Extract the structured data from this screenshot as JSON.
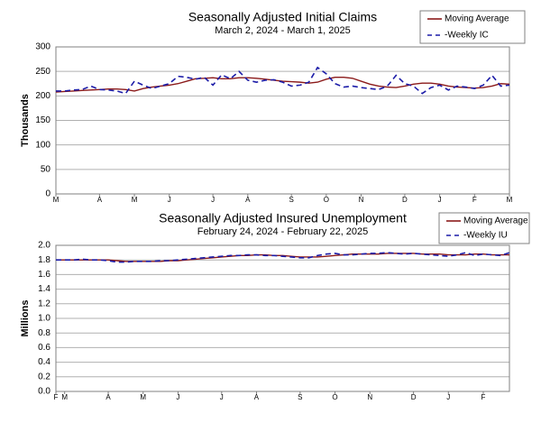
{
  "chart_data": [
    {
      "type": "line",
      "title": "Seasonally Adjusted Initial Claims",
      "subtitle": "March 2, 2024 - March 1, 2025",
      "ylabel": "Thousands",
      "categories": [
        "M",
        null,
        null,
        null,
        null,
        "A",
        null,
        null,
        null,
        "M",
        null,
        null,
        null,
        "J",
        null,
        null,
        null,
        null,
        "J",
        null,
        null,
        null,
        "A",
        null,
        null,
        null,
        null,
        "S",
        null,
        null,
        null,
        "O",
        null,
        null,
        null,
        "N",
        null,
        null,
        null,
        null,
        "D",
        null,
        null,
        null,
        "J",
        null,
        null,
        null,
        "F",
        null,
        null,
        null,
        "M"
      ],
      "series": [
        {
          "name": "Moving Average",
          "color": "#8b1a1a",
          "dashed": false,
          "values": [
            208,
            209,
            210,
            211,
            212,
            213,
            214,
            214,
            213,
            210,
            215,
            218,
            220,
            222,
            225,
            230,
            235,
            236,
            237,
            235,
            235,
            237,
            237,
            236,
            234,
            232,
            230,
            229,
            228,
            226,
            228,
            234,
            238,
            238,
            236,
            230,
            224,
            220,
            218,
            217,
            220,
            224,
            226,
            226,
            224,
            220,
            218,
            217,
            216,
            217,
            220,
            225,
            224
          ]
        },
        {
          "name": "-Weekly IC",
          "color": "#1c1ca8",
          "dashed": true,
          "values": [
            210,
            210,
            212,
            213,
            220,
            213,
            212,
            210,
            205,
            230,
            222,
            215,
            220,
            225,
            240,
            238,
            234,
            238,
            222,
            243,
            235,
            250,
            232,
            228,
            232,
            233,
            228,
            220,
            222,
            228,
            258,
            245,
            225,
            218,
            220,
            217,
            215,
            213,
            220,
            242,
            225,
            220,
            205,
            217,
            222,
            212,
            220,
            218,
            215,
            222,
            242,
            220,
            222
          ]
        }
      ],
      "ylim": [
        0,
        300
      ],
      "yticks": [
        0,
        50,
        100,
        150,
        200,
        250,
        300
      ],
      "grid": true,
      "legend": "top right"
    },
    {
      "type": "line",
      "title": "Seasonally Adjusted Insured Unemployment",
      "subtitle": "February 24, 2024 - February 22, 2025",
      "ylabel": "Millions",
      "categories": [
        "F",
        "M",
        null,
        null,
        null,
        null,
        "A",
        null,
        null,
        null,
        "M",
        null,
        null,
        null,
        "J",
        null,
        null,
        null,
        null,
        "J",
        null,
        null,
        null,
        "A",
        null,
        null,
        null,
        null,
        "S",
        null,
        null,
        null,
        "O",
        null,
        null,
        null,
        "N",
        null,
        null,
        null,
        null,
        "D",
        null,
        null,
        null,
        "J",
        null,
        null,
        null,
        "F",
        null,
        null,
        null
      ],
      "series": [
        {
          "name": "Moving Average",
          "color": "#8b1a1a",
          "dashed": false,
          "values": [
            1.8,
            1.8,
            1.8,
            1.8,
            1.8,
            1.8,
            1.8,
            1.79,
            1.78,
            1.78,
            1.78,
            1.78,
            1.78,
            1.79,
            1.79,
            1.8,
            1.81,
            1.82,
            1.83,
            1.84,
            1.85,
            1.86,
            1.86,
            1.87,
            1.87,
            1.86,
            1.86,
            1.85,
            1.84,
            1.84,
            1.84,
            1.85,
            1.86,
            1.87,
            1.88,
            1.88,
            1.88,
            1.88,
            1.89,
            1.89,
            1.89,
            1.89,
            1.88,
            1.88,
            1.88,
            1.87,
            1.87,
            1.87,
            1.88,
            1.88,
            1.87,
            1.87,
            1.87
          ]
        },
        {
          "name": "-Weekly IU",
          "color": "#1c1ca8",
          "dashed": true,
          "values": [
            1.8,
            1.8,
            1.8,
            1.81,
            1.8,
            1.8,
            1.79,
            1.77,
            1.77,
            1.78,
            1.78,
            1.78,
            1.79,
            1.79,
            1.8,
            1.81,
            1.82,
            1.83,
            1.84,
            1.85,
            1.86,
            1.86,
            1.87,
            1.87,
            1.86,
            1.86,
            1.85,
            1.84,
            1.83,
            1.83,
            1.86,
            1.88,
            1.89,
            1.87,
            1.87,
            1.88,
            1.89,
            1.89,
            1.9,
            1.89,
            1.88,
            1.89,
            1.88,
            1.87,
            1.86,
            1.85,
            1.87,
            1.9,
            1.86,
            1.88,
            1.87,
            1.86,
            1.9
          ]
        }
      ],
      "ylim": [
        0,
        2
      ],
      "yticks": [
        {
          "value": 0,
          "label": "0.0"
        },
        0.2,
        0.4,
        0.6,
        0.8,
        {
          "value": 1,
          "label": "1.0"
        },
        1.2,
        1.4,
        1.6,
        1.8,
        {
          "value": 2,
          "label": "2.0"
        }
      ],
      "grid": true,
      "legend": "top right"
    }
  ]
}
